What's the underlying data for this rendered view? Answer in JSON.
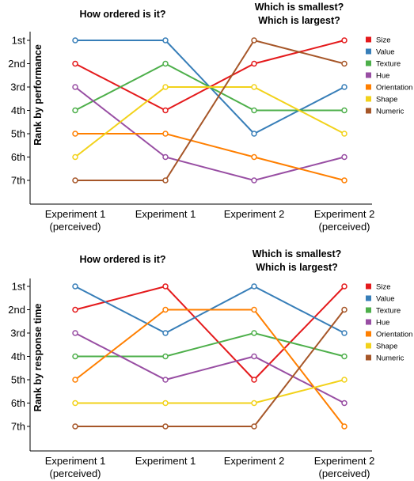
{
  "chart_data": [
    {
      "type": "line",
      "ylabel": "Rank by performance",
      "categories": [
        [
          "Experiment 1",
          "(perceived)"
        ],
        [
          "Experiment 1"
        ],
        [
          "Experiment 2"
        ],
        [
          "Experiment 2",
          "(perceived)"
        ]
      ],
      "header_left": "How ordered is it?",
      "header_right": [
        "Which is smallest?",
        "Which is largest?"
      ],
      "yticks": [
        "1st",
        "2nd",
        "3rd",
        "4th",
        "5th",
        "6th",
        "7th"
      ],
      "y_reversed": true,
      "ylim": [
        1,
        7
      ],
      "legend_position": "right",
      "series": [
        {
          "name": "Size",
          "color": "#e41a1c",
          "values": [
            2,
            4,
            2,
            1
          ]
        },
        {
          "name": "Value",
          "color": "#377eb8",
          "values": [
            1,
            1,
            5,
            3
          ]
        },
        {
          "name": "Texture",
          "color": "#4daf4a",
          "values": [
            4,
            2,
            4,
            4
          ]
        },
        {
          "name": "Hue",
          "color": "#984ea3",
          "values": [
            3,
            6,
            7,
            6
          ]
        },
        {
          "name": "Orientation",
          "color": "#ff7f00",
          "values": [
            5,
            5,
            6,
            7
          ]
        },
        {
          "name": "Shape",
          "color": "#f2d21b",
          "values": [
            6,
            3,
            3,
            5
          ]
        },
        {
          "name": "Numeric",
          "color": "#a65628",
          "values": [
            7,
            7,
            1,
            2
          ]
        }
      ]
    },
    {
      "type": "line",
      "ylabel": "Rank by response time",
      "categories": [
        [
          "Experiment 1",
          "(perceived)"
        ],
        [
          "Experiment 1"
        ],
        [
          "Experiment 2"
        ],
        [
          "Experiment 2",
          "(perceived)"
        ]
      ],
      "header_left": "How ordered is it?",
      "header_right": [
        "Which is smallest?",
        "Which is largest?"
      ],
      "yticks": [
        "1st",
        "2nd",
        "3rd",
        "4th",
        "5th",
        "6th",
        "7th"
      ],
      "y_reversed": true,
      "ylim": [
        1,
        7
      ],
      "legend_position": "right",
      "series": [
        {
          "name": "Size",
          "color": "#e41a1c",
          "values": [
            2,
            1,
            5,
            1
          ]
        },
        {
          "name": "Value",
          "color": "#377eb8",
          "values": [
            1,
            3,
            1,
            3
          ]
        },
        {
          "name": "Texture",
          "color": "#4daf4a",
          "values": [
            4,
            4,
            3,
            4
          ]
        },
        {
          "name": "Hue",
          "color": "#984ea3",
          "values": [
            3,
            5,
            4,
            6
          ]
        },
        {
          "name": "Orientation",
          "color": "#ff7f00",
          "values": [
            5,
            2,
            2,
            7
          ]
        },
        {
          "name": "Shape",
          "color": "#f2d21b",
          "values": [
            6,
            6,
            6,
            5
          ]
        },
        {
          "name": "Numeric",
          "color": "#a65628",
          "values": [
            7,
            7,
            7,
            2
          ]
        }
      ]
    }
  ]
}
